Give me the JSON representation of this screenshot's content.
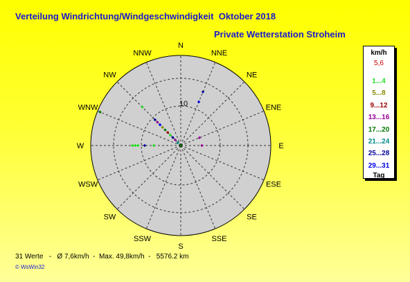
{
  "header": {
    "title": "Verteilung Windrichtung/Windgeschwindigkeit  Oktober 2018",
    "subtitle": "Private Wetterstation Stroheim"
  },
  "legend": {
    "unit": "km/h",
    "max_value": "5,6",
    "classes": [
      {
        "label": "1...4",
        "color": "#22dd22"
      },
      {
        "label": "5...8",
        "color": "#888800"
      },
      {
        "label": "9...12",
        "color": "#990000"
      },
      {
        "label": "13...16",
        "color": "#990099"
      },
      {
        "label": "17...20",
        "color": "#007700"
      },
      {
        "label": "21...24",
        "color": "#008888"
      },
      {
        "label": "25...28",
        "color": "#000099"
      },
      {
        "label": "29...31",
        "color": "#0000ee"
      }
    ],
    "tag_label": "Tag"
  },
  "footer": {
    "summary": "31 Werte   -   Ø 7,6km/h  -  Max. 49,8km/h  -   5576.2 km",
    "copyright": "© WsWin32"
  },
  "chart_data": {
    "type": "scatter",
    "coordinate_system": "polar",
    "directions": [
      "N",
      "NNE",
      "NE",
      "ENE",
      "E",
      "ESE",
      "SE",
      "SSE",
      "S",
      "SSW",
      "SW",
      "WSW",
      "W",
      "WNW",
      "NW",
      "NNW"
    ],
    "radial_tick_label": "10",
    "radial_tick_value": 10,
    "radial_max": 20,
    "points": [
      {
        "dir_deg": 315,
        "r": 0.9,
        "color": "#008888"
      },
      {
        "dir_deg": 315,
        "r": 1.7,
        "color": "#990099"
      },
      {
        "dir_deg": 315,
        "r": 2.5,
        "color": "#000099"
      },
      {
        "dir_deg": 315,
        "r": 3.3,
        "color": "#22dd22"
      },
      {
        "dir_deg": 315,
        "r": 4.1,
        "color": "#990000"
      },
      {
        "dir_deg": 315,
        "r": 4.9,
        "color": "#007700"
      },
      {
        "dir_deg": 315,
        "r": 5.7,
        "color": "#888800"
      },
      {
        "dir_deg": 315,
        "r": 6.5,
        "color": "#0000ee"
      },
      {
        "dir_deg": 315,
        "r": 7.3,
        "color": "#990099"
      },
      {
        "dir_deg": 315,
        "r": 8.1,
        "color": "#000099"
      },
      {
        "dir_deg": 315,
        "r": 12.1,
        "color": "#22dd22"
      },
      {
        "dir_deg": 292.5,
        "r": 19.4,
        "color": "#007700"
      },
      {
        "dir_deg": 22.5,
        "r": 10.5,
        "color": "#0000ee"
      },
      {
        "dir_deg": 22.5,
        "r": 12.9,
        "color": "#000099"
      },
      {
        "dir_deg": 270,
        "r": 9.5,
        "color": "#22dd22"
      },
      {
        "dir_deg": 270,
        "r": 10.7,
        "color": "#22dd22"
      },
      {
        "dir_deg": 270,
        "r": 10.1,
        "color": "#22dd22"
      },
      {
        "dir_deg": 270,
        "r": 8.0,
        "color": "#000099"
      },
      {
        "dir_deg": 270,
        "r": 6.0,
        "color": "#22dd22"
      },
      {
        "dir_deg": 90,
        "r": 4.7,
        "color": "#990099"
      },
      {
        "dir_deg": 67.5,
        "r": 4.5,
        "color": "#990099"
      },
      {
        "dir_deg": 0,
        "r": 0.0,
        "color": "#007700"
      }
    ]
  }
}
